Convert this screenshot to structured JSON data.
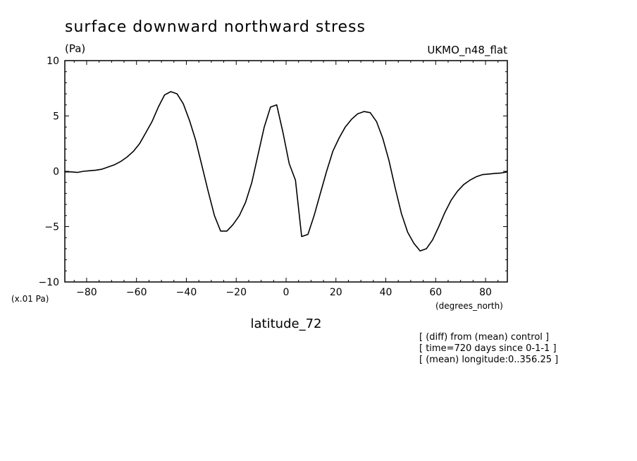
{
  "chart_data": {
    "type": "line",
    "title": "surface downward northward stress",
    "units_label": "(Pa)",
    "model_label": "UKMO_n48_flat",
    "scale_label": "(x.01 Pa)",
    "xunits_label": "(degrees_north)",
    "xlabel": "latitude_72",
    "notes": [
      "[ (diff) from (mean) control ]",
      "[ time=720 days since 0-1-1 ]",
      "[ (mean) longitude:0..356.25 ]"
    ],
    "xlim": [
      -88.75,
      88.75
    ],
    "ylim": [
      -10,
      10
    ],
    "xticks": [
      -80,
      -60,
      -40,
      -20,
      0,
      20,
      40,
      60,
      80
    ],
    "xtick_labels": [
      "−80",
      "−60",
      "−40",
      "−20",
      "0",
      "20",
      "40",
      "60",
      "80"
    ],
    "yticks": [
      10,
      5,
      0,
      -5,
      -10
    ],
    "ytick_labels": [
      "10",
      "5",
      "0",
      "−5",
      "−10"
    ],
    "x": [
      -88.75,
      -86.25,
      -83.75,
      -81.25,
      -78.75,
      -76.25,
      -73.75,
      -71.25,
      -68.75,
      -66.25,
      -63.75,
      -61.25,
      -58.75,
      -56.25,
      -53.75,
      -51.25,
      -48.75,
      -46.25,
      -43.75,
      -41.25,
      -38.75,
      -36.25,
      -33.75,
      -31.25,
      -28.75,
      -26.25,
      -23.75,
      -21.25,
      -18.75,
      -16.25,
      -13.75,
      -11.25,
      -8.75,
      -6.25,
      -3.75,
      -1.25,
      1.25,
      3.75,
      6.25,
      8.75,
      11.25,
      13.75,
      16.25,
      18.75,
      21.25,
      23.75,
      26.25,
      28.75,
      31.25,
      33.75,
      36.25,
      38.75,
      41.25,
      43.75,
      46.25,
      48.75,
      51.25,
      53.75,
      56.25,
      58.75,
      61.25,
      63.75,
      66.25,
      68.75,
      71.25,
      73.75,
      76.25,
      78.75,
      81.25,
      83.75,
      86.25,
      88.75
    ],
    "series": [
      {
        "values": [
          -0.05,
          -0.05,
          -0.1,
          0.0,
          0.05,
          0.1,
          0.2,
          0.4,
          0.6,
          0.9,
          1.3,
          1.8,
          2.5,
          3.5,
          4.5,
          5.8,
          6.9,
          7.2,
          7.0,
          6.1,
          4.6,
          2.8,
          0.5,
          -1.8,
          -4.0,
          -5.4,
          -5.4,
          -4.8,
          -4.0,
          -2.8,
          -1.0,
          1.5,
          4.0,
          5.8,
          6.0,
          3.5,
          0.7,
          -0.8,
          -5.9,
          -5.7,
          -4.0,
          -2.0,
          0.0,
          1.8,
          3.0,
          4.0,
          4.7,
          5.2,
          5.4,
          5.3,
          4.5,
          3.0,
          1.0,
          -1.5,
          -3.8,
          -5.5,
          -6.5,
          -7.2,
          -7.0,
          -6.2,
          -5.0,
          -3.7,
          -2.6,
          -1.8,
          -1.2,
          -0.8,
          -0.5,
          -0.3,
          -0.25,
          -0.2,
          -0.15,
          -0.05
        ]
      }
    ]
  }
}
